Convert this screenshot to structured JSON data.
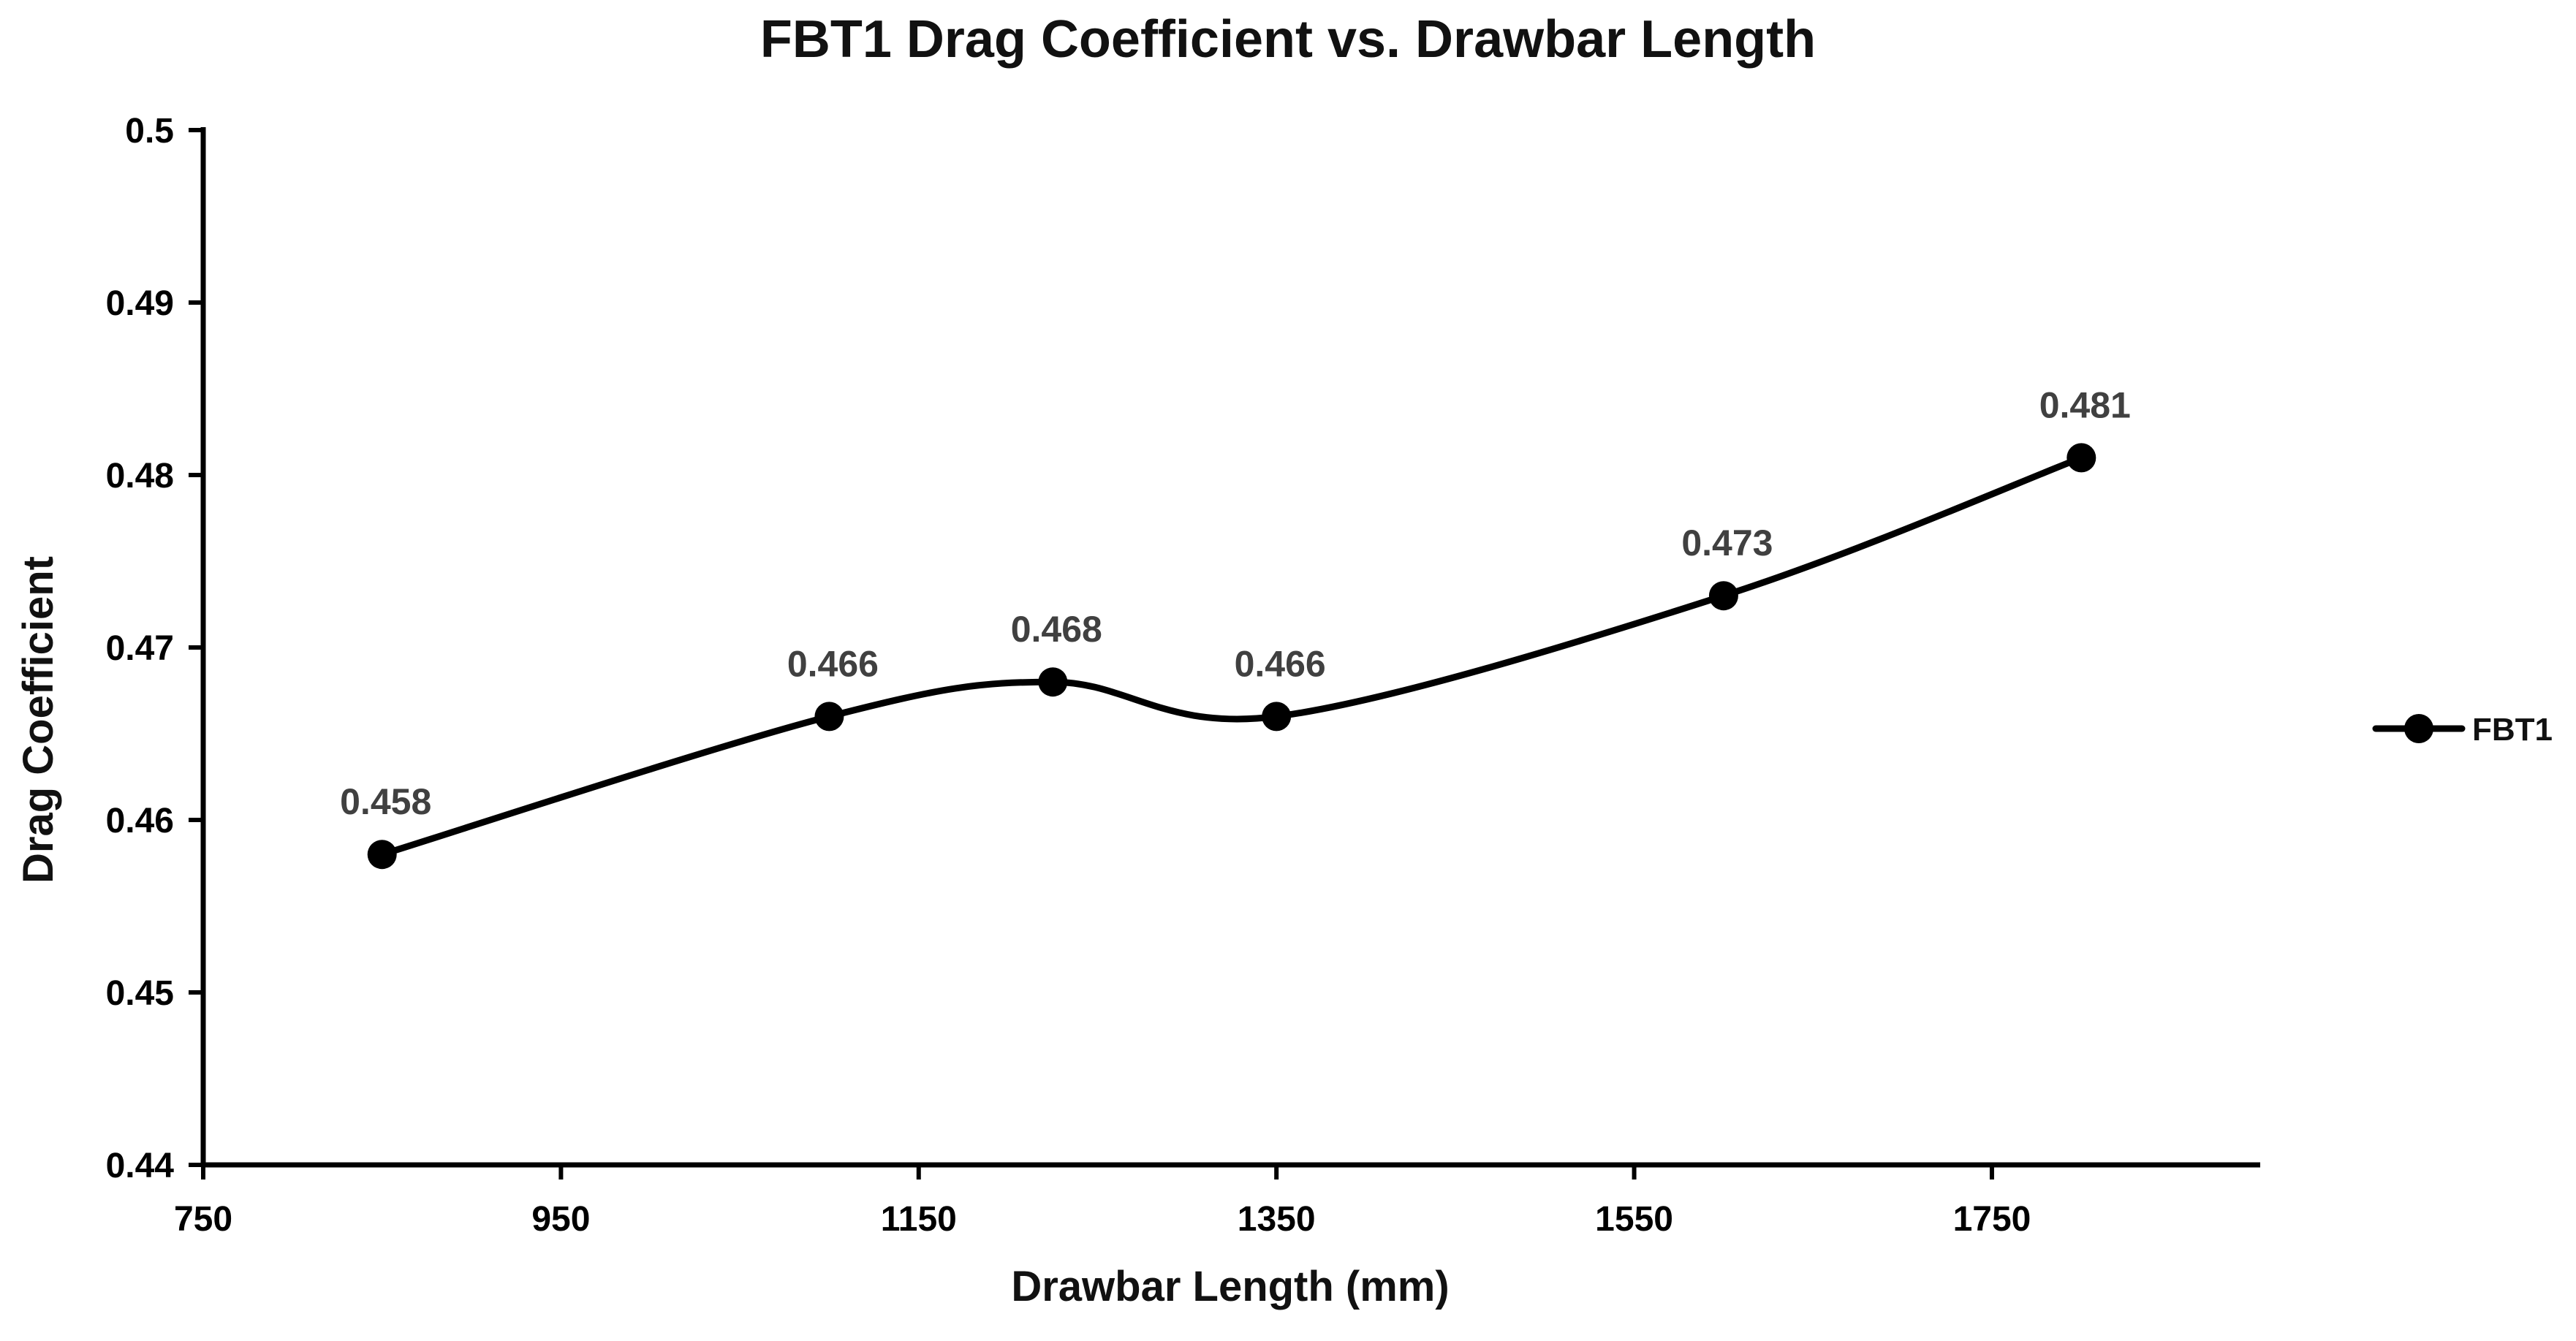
{
  "chart_data": {
    "type": "line",
    "title": "FBT1 Drag Coefficient vs. Drawbar Length",
    "xlabel": "Drawbar Length (mm)",
    "ylabel": "Drag Coefficient",
    "xlim": [
      750,
      1900
    ],
    "ylim": [
      0.44,
      0.5
    ],
    "x_ticks": [
      750,
      950,
      1150,
      1350,
      1550,
      1750
    ],
    "y_ticks": [
      0.44,
      0.45,
      0.46,
      0.47,
      0.48,
      0.49,
      0.5
    ],
    "y_tick_labels": [
      "0.44",
      "0.45",
      "0.46",
      "0.47",
      "0.48",
      "0.49",
      "0.5"
    ],
    "grid": false,
    "smooth": true,
    "legend": {
      "position": "right",
      "entries": [
        "FBT1"
      ]
    },
    "series": [
      {
        "name": "FBT1",
        "color": "#000000",
        "marker": "circle",
        "points": [
          {
            "x": 850,
            "y": 0.458,
            "label": "0.458"
          },
          {
            "x": 1100,
            "y": 0.466,
            "label": "0.466"
          },
          {
            "x": 1225,
            "y": 0.468,
            "label": "0.468"
          },
          {
            "x": 1350,
            "y": 0.466,
            "label": "0.466"
          },
          {
            "x": 1600,
            "y": 0.473,
            "label": "0.473"
          },
          {
            "x": 1800,
            "y": 0.481,
            "label": "0.481"
          }
        ]
      }
    ]
  }
}
